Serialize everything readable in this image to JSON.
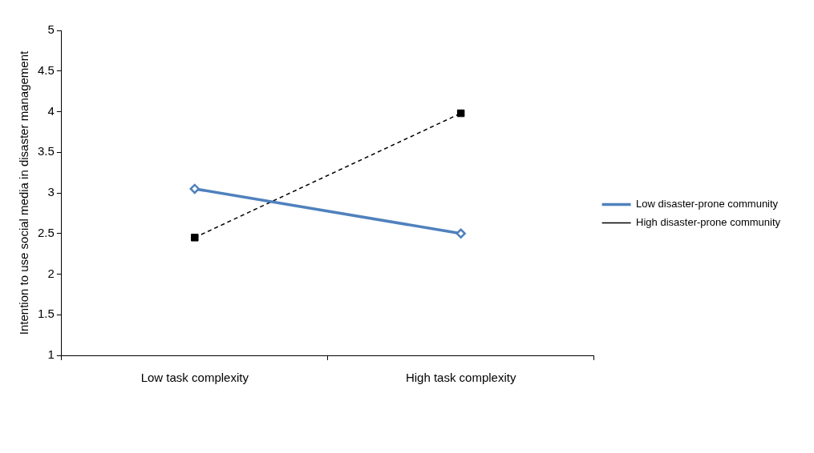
{
  "chart_data": {
    "type": "line",
    "ylabel": "Intention to use social media in disaster management",
    "categories": [
      "Low task complexity",
      "High task complexity"
    ],
    "series": [
      {
        "name": "Low disaster-prone community",
        "color": "#4f81bd",
        "values": [
          3.05,
          2.5
        ],
        "marker": "diamond",
        "line_style": "solid"
      },
      {
        "name": "High disaster-prone community",
        "color": "#000000",
        "values": [
          2.45,
          3.98
        ],
        "marker": "square",
        "line_style": "dashed"
      }
    ],
    "ylim": [
      1,
      5
    ],
    "yticks": [
      1,
      1.5,
      2,
      2.5,
      3,
      3.5,
      4,
      4.5,
      5
    ],
    "grid": false,
    "legend": "right"
  }
}
